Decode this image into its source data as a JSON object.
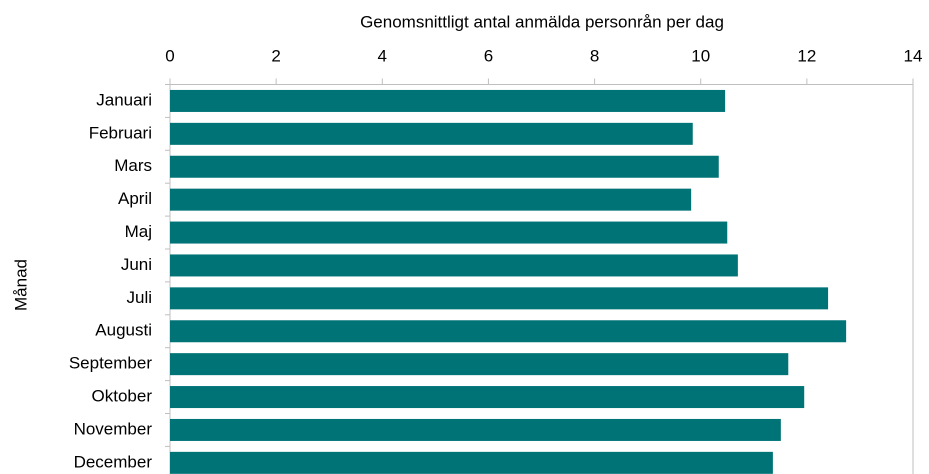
{
  "chart_data": {
    "type": "bar",
    "orientation": "horizontal",
    "title": "Genomsnittligt antal anmälda personrån per dag",
    "y_label": "Månad",
    "categories": [
      "Januari",
      "Februari",
      "Mars",
      "April",
      "Maj",
      "Juni",
      "Juli",
      "Augusti",
      "September",
      "Oktober",
      "November",
      "December"
    ],
    "values": [
      10.46,
      9.85,
      10.34,
      9.82,
      10.5,
      10.7,
      12.4,
      12.74,
      11.65,
      11.95,
      11.51,
      11.36
    ],
    "color": "#007377",
    "xlim": [
      0,
      14
    ],
    "xticks": [
      0,
      2,
      4,
      6,
      8,
      10,
      12,
      14
    ],
    "grid": false
  }
}
